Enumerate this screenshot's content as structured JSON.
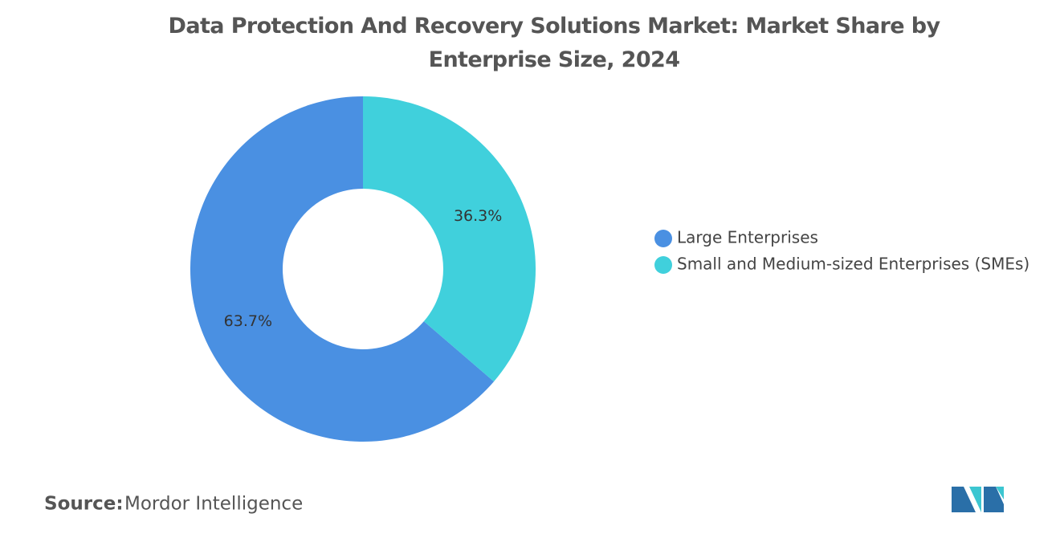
{
  "chart_data": {
    "type": "pie",
    "title": "Data Protection And Recovery Solutions Market: Market Share by Enterprise Size, 2024",
    "categories": [
      "Large Enterprises",
      "Small and Medium-sized Enterprises (SMEs)"
    ],
    "values": [
      63.7,
      36.3
    ],
    "value_labels": [
      "63.7%",
      "36.3%"
    ],
    "colors": [
      "#4a90e2",
      "#40d0dc"
    ],
    "donut": true,
    "legend": "right"
  },
  "footer": {
    "source_label": "Source:",
    "source": "Mordor Intelligence"
  }
}
